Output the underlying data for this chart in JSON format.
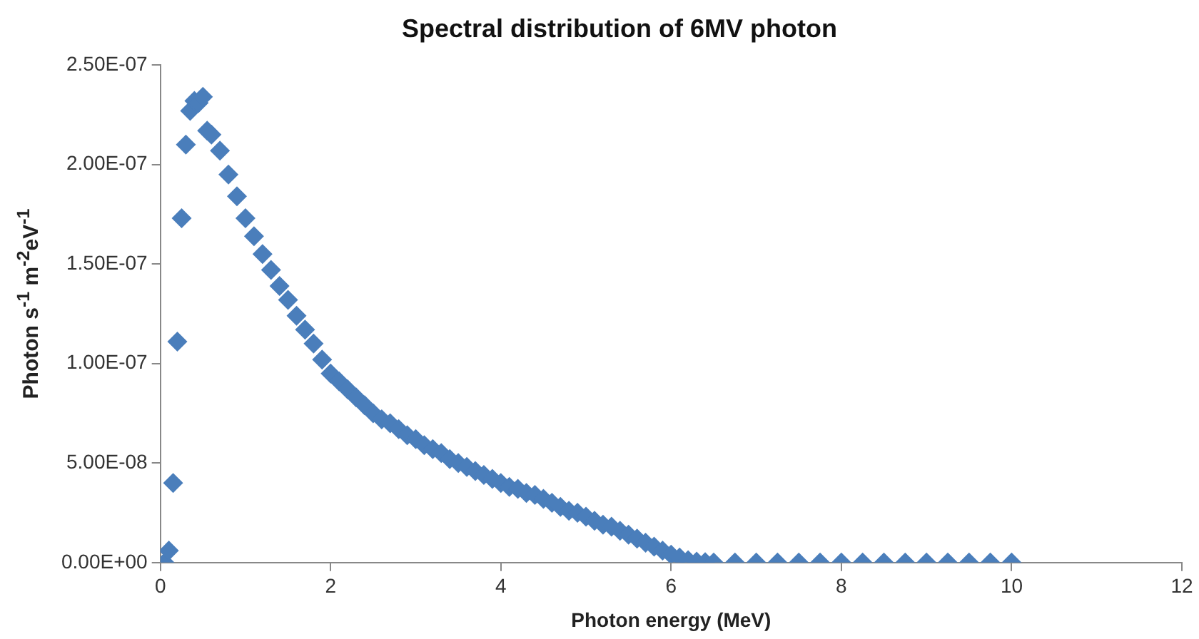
{
  "chart_data": {
    "type": "scatter",
    "title": "Spectral distribution of 6MV photon",
    "xlabel": "Photon energy (MeV)",
    "ylabel": "Photon s$^{-1}$ m$^{-2}$eV$^{-1}$",
    "marker": "diamond",
    "grid": false,
    "legend": false,
    "xlim": [
      0,
      12
    ],
    "xticks": [
      0,
      2,
      4,
      6,
      8,
      10,
      12
    ],
    "ylim": [
      0,
      2.5e-07
    ],
    "yticks": [
      {
        "value": 0,
        "label": "0.00E+00"
      },
      {
        "value": 5e-08,
        "label": "5.00E-08"
      },
      {
        "value": 1e-07,
        "label": "1.00E-07"
      },
      {
        "value": 1.5e-07,
        "label": "1.50E-07"
      },
      {
        "value": 2e-07,
        "label": "2.00E-07"
      },
      {
        "value": 2.5e-07,
        "label": "2.50E-07"
      }
    ],
    "series": [
      {
        "color": "#4a7ebb",
        "x": [
          0.05,
          0.1,
          0.15,
          0.2,
          0.25,
          0.3,
          0.35,
          0.4,
          0.45,
          0.5,
          0.55,
          0.6,
          0.7,
          0.8,
          0.9,
          1.0,
          1.1,
          1.2,
          1.3,
          1.4,
          1.5,
          1.6,
          1.7,
          1.8,
          1.9,
          2.0,
          2.1,
          2.2,
          2.3,
          2.4,
          2.5,
          2.6,
          2.7,
          2.8,
          2.9,
          3.0,
          3.1,
          3.2,
          3.3,
          3.4,
          3.5,
          3.6,
          3.7,
          3.8,
          3.9,
          4.0,
          4.1,
          4.2,
          4.3,
          4.4,
          4.5,
          4.6,
          4.7,
          4.8,
          4.9,
          5.0,
          5.1,
          5.2,
          5.3,
          5.4,
          5.5,
          5.6,
          5.7,
          5.8,
          5.9,
          6.0,
          6.1,
          6.2,
          6.3,
          6.4,
          6.5,
          6.75,
          7.0,
          7.25,
          7.5,
          7.75,
          8.0,
          8.25,
          8.5,
          8.75,
          9.0,
          9.25,
          9.5,
          9.75,
          10.0
        ],
        "values": [
          0,
          6e-09,
          4e-08,
          1.11e-07,
          1.73e-07,
          2.1e-07,
          2.27e-07,
          2.32e-07,
          2.31e-07,
          2.34e-07,
          2.17e-07,
          2.15e-07,
          2.07e-07,
          1.95e-07,
          1.84e-07,
          1.73e-07,
          1.64e-07,
          1.55e-07,
          1.47e-07,
          1.39e-07,
          1.32e-07,
          1.24e-07,
          1.17e-07,
          1.1e-07,
          1.02e-07,
          9.5e-08,
          9.1e-08,
          8.7e-08,
          8.3e-08,
          7.9e-08,
          7.5e-08,
          7.2e-08,
          7e-08,
          6.7e-08,
          6.4e-08,
          6.2e-08,
          5.9e-08,
          5.7e-08,
          5.5e-08,
          5.2e-08,
          5e-08,
          4.8e-08,
          4.6e-08,
          4.4e-08,
          4.2e-08,
          4e-08,
          3.8e-08,
          3.7e-08,
          3.5e-08,
          3.4e-08,
          3.2e-08,
          3e-08,
          2.8e-08,
          2.6e-08,
          2.5e-08,
          2.3e-08,
          2.1e-08,
          1.9e-08,
          1.8e-08,
          1.6e-08,
          1.4e-08,
          1.2e-08,
          1e-08,
          8e-09,
          6e-09,
          4e-09,
          2.5e-09,
          1.2e-09,
          5e-10,
          2e-10,
          0,
          0,
          0,
          0,
          0,
          0,
          0,
          0,
          0,
          0,
          0,
          0,
          0,
          0,
          0
        ]
      }
    ]
  }
}
